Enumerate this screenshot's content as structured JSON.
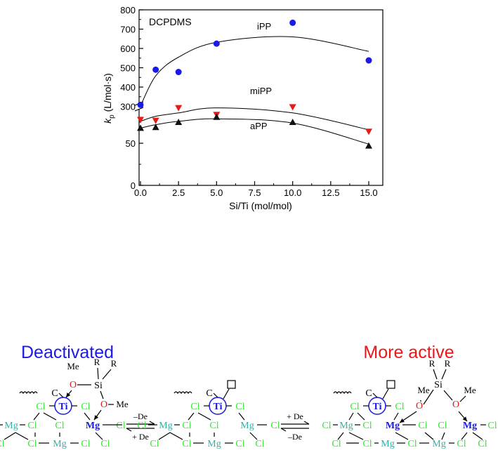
{
  "chart_data": {
    "type": "scatter",
    "annotation": "DCPDMS",
    "xlabel": "Si/Ti (mol/mol)",
    "ylabel": "k",
    "ylabel_sub": "p",
    "ylabel_unit": " (L/mol·s)",
    "xlim": [
      0,
      16
    ],
    "x_ticks": [
      "0.0",
      "2.5",
      "5.0",
      "7.5",
      "10.0",
      "12.5",
      "15.0"
    ],
    "y_ticks_lower": [
      "0",
      "50"
    ],
    "y_ticks_upper": [
      "300",
      "400",
      "500",
      "600",
      "700",
      "800"
    ],
    "axis_break": true,
    "series": [
      {
        "name": "iPP",
        "marker": "circle",
        "color": "#1a1ae6",
        "x": [
          0,
          1,
          2.5,
          5,
          10,
          15
        ],
        "y": [
          308,
          490,
          478,
          625,
          733,
          538
        ],
        "fit_y": [
          302,
          458,
          555,
          632,
          660,
          585
        ]
      },
      {
        "name": "miPP",
        "marker": "triangle-down",
        "color": "#e61a1a",
        "x": [
          0,
          1,
          2.5,
          5,
          10,
          15
        ],
        "y": [
          78,
          77,
          92,
          84,
          93,
          64
        ],
        "fit_y": [
          76,
          82,
          86,
          92,
          86,
          66
        ]
      },
      {
        "name": "aPP",
        "marker": "triangle-up",
        "color": "#111111",
        "x": [
          0,
          1,
          2.5,
          5,
          10,
          15
        ],
        "y": [
          68,
          69,
          75,
          81,
          75,
          47
        ],
        "fit_y": [
          68,
          72,
          76,
          79,
          74,
          49
        ]
      }
    ]
  },
  "scheme": {
    "left_title": "Deactivated",
    "right_title": "More active",
    "left_color": "#1a1ae6",
    "right_color": "#e61a1a",
    "eq1_top": "–De",
    "eq1_bottom": "+ De",
    "eq2_top": "+ De",
    "eq2_bottom": "–De",
    "atoms": {
      "ti": "Ti",
      "mg": "Mg",
      "cl": "Cl",
      "o": "O",
      "si": "Si",
      "me": "Me",
      "r": "R",
      "c": "C"
    }
  }
}
